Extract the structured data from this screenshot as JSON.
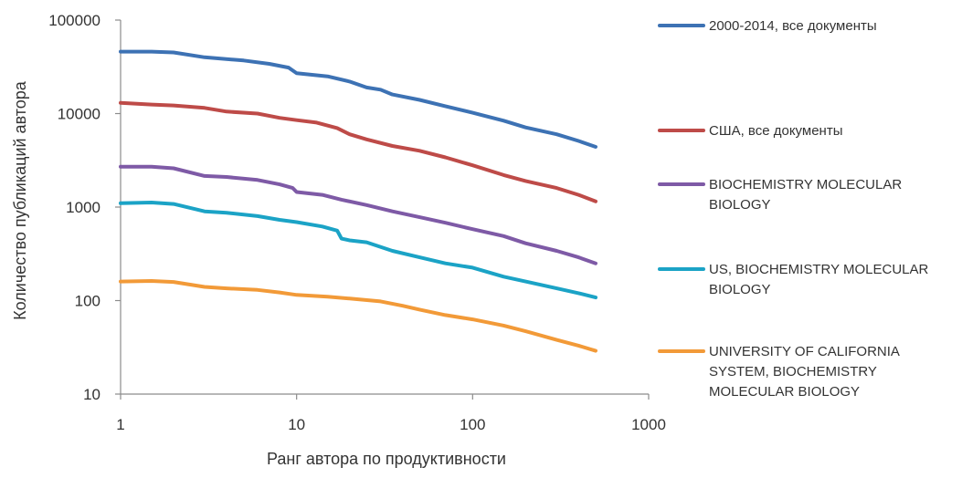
{
  "chart_data": {
    "type": "line",
    "title": "",
    "xlabel": "Ранг автора по продуктивности",
    "ylabel": "Количество публикаций автора",
    "x_scale": "log",
    "y_scale": "log",
    "xlim": [
      1,
      1000
    ],
    "ylim": [
      10,
      100000
    ],
    "x_ticks": [
      1,
      10,
      100,
      1000
    ],
    "x_tick_labels": [
      "1",
      "10",
      "100",
      "1000"
    ],
    "y_ticks": [
      10,
      100,
      1000,
      10000,
      100000
    ],
    "y_tick_labels": [
      "10",
      "100",
      "1000",
      "10000",
      "100000"
    ],
    "grid": false,
    "legend_position": "right",
    "series": [
      {
        "name": "2000-2014, все документы",
        "color": "#3D72B4",
        "points": [
          [
            1,
            46000
          ],
          [
            1.5,
            46000
          ],
          [
            2,
            45000
          ],
          [
            3,
            40000
          ],
          [
            5,
            37000
          ],
          [
            7,
            34000
          ],
          [
            9,
            31000
          ],
          [
            10,
            27000
          ],
          [
            15,
            25000
          ],
          [
            20,
            22000
          ],
          [
            25,
            19000
          ],
          [
            30,
            18000
          ],
          [
            35,
            16000
          ],
          [
            50,
            14000
          ],
          [
            70,
            12000
          ],
          [
            100,
            10200
          ],
          [
            150,
            8400
          ],
          [
            200,
            7100
          ],
          [
            300,
            6000
          ],
          [
            400,
            5100
          ],
          [
            500,
            4400
          ]
        ]
      },
      {
        "name": "США, все документы",
        "color": "#BE4B48",
        "points": [
          [
            1,
            13000
          ],
          [
            1.5,
            12500
          ],
          [
            2,
            12200
          ],
          [
            3,
            11500
          ],
          [
            4,
            10500
          ],
          [
            6,
            10000
          ],
          [
            8,
            9000
          ],
          [
            10,
            8500
          ],
          [
            13,
            8000
          ],
          [
            17,
            7000
          ],
          [
            20,
            6000
          ],
          [
            25,
            5300
          ],
          [
            35,
            4500
          ],
          [
            50,
            4000
          ],
          [
            70,
            3400
          ],
          [
            100,
            2800
          ],
          [
            150,
            2200
          ],
          [
            200,
            1900
          ],
          [
            300,
            1600
          ],
          [
            400,
            1350
          ],
          [
            500,
            1150
          ]
        ]
      },
      {
        "name": "BIOCHEMISTRY MOLECULAR BIOLOGY",
        "color": "#7E5AA6",
        "points": [
          [
            1,
            2700
          ],
          [
            1.5,
            2700
          ],
          [
            2,
            2600
          ],
          [
            3,
            2150
          ],
          [
            4,
            2100
          ],
          [
            6,
            1950
          ],
          [
            8,
            1750
          ],
          [
            9.5,
            1600
          ],
          [
            10,
            1450
          ],
          [
            14,
            1350
          ],
          [
            18,
            1200
          ],
          [
            25,
            1050
          ],
          [
            35,
            900
          ],
          [
            50,
            780
          ],
          [
            70,
            680
          ],
          [
            100,
            580
          ],
          [
            150,
            490
          ],
          [
            200,
            410
          ],
          [
            300,
            340
          ],
          [
            400,
            290
          ],
          [
            500,
            250
          ]
        ]
      },
      {
        "name": "US, BIOCHEMISTRY MOLECULAR BIOLOGY",
        "color": "#1BA3C6",
        "points": [
          [
            1,
            1100
          ],
          [
            1.5,
            1120
          ],
          [
            2,
            1080
          ],
          [
            3,
            900
          ],
          [
            4,
            870
          ],
          [
            6,
            800
          ],
          [
            8,
            730
          ],
          [
            10,
            690
          ],
          [
            14,
            620
          ],
          [
            17,
            560
          ],
          [
            18,
            460
          ],
          [
            20,
            440
          ],
          [
            25,
            420
          ],
          [
            35,
            340
          ],
          [
            50,
            290
          ],
          [
            70,
            250
          ],
          [
            100,
            225
          ],
          [
            150,
            180
          ],
          [
            200,
            160
          ],
          [
            300,
            135
          ],
          [
            400,
            120
          ],
          [
            500,
            108
          ]
        ]
      },
      {
        "name": "UNIVERSITY OF CALIFORNIA SYSTEM, BIOCHEMISTRY MOLECULAR BIOLOGY",
        "color": "#F29A38",
        "points": [
          [
            1,
            160
          ],
          [
            1.5,
            162
          ],
          [
            2,
            158
          ],
          [
            3,
            140
          ],
          [
            4,
            135
          ],
          [
            6,
            130
          ],
          [
            8,
            122
          ],
          [
            10,
            115
          ],
          [
            15,
            110
          ],
          [
            20,
            105
          ],
          [
            30,
            98
          ],
          [
            40,
            88
          ],
          [
            50,
            80
          ],
          [
            70,
            70
          ],
          [
            100,
            63
          ],
          [
            150,
            54
          ],
          [
            200,
            47
          ],
          [
            300,
            38
          ],
          [
            400,
            33
          ],
          [
            500,
            29
          ]
        ]
      }
    ],
    "legend_lines": [
      [
        "2000-2014, все документы"
      ],
      [
        "США, все документы"
      ],
      [
        "BIOCHEMISTRY MOLECULAR",
        "BIOLOGY"
      ],
      [
        "US, BIOCHEMISTRY MOLECULAR",
        "BIOLOGY"
      ],
      [
        "UNIVERSITY OF CALIFORNIA",
        "SYSTEM, BIOCHEMISTRY",
        "MOLECULAR BIOLOGY"
      ]
    ]
  }
}
